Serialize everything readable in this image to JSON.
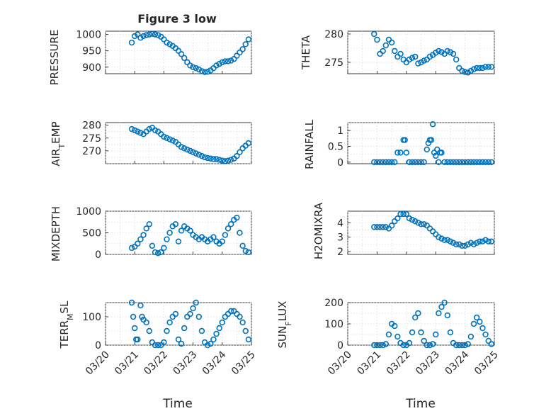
{
  "title": "Figure 3 low",
  "xlabel": "Time",
  "x_ticks": [
    "03/20",
    "03/21",
    "03/22",
    "03/23",
    "03/24",
    "03/25"
  ],
  "chart_data": [
    {
      "type": "scatter",
      "ylabel": "PRESSURE",
      "ylim": [
        880,
        1010
      ],
      "yticks": [
        900,
        950,
        1000
      ],
      "xlim": [
        "03/20",
        "03/25"
      ],
      "x_days": [
        0.9,
        1.0,
        1.1,
        1.2,
        1.3,
        1.4,
        1.5,
        1.6,
        1.7,
        1.8,
        1.9,
        2.0,
        2.1,
        2.2,
        2.3,
        2.4,
        2.5,
        2.6,
        2.7,
        2.8,
        2.9,
        3.0,
        3.1,
        3.2,
        3.3,
        3.4,
        3.5,
        3.6,
        3.7,
        3.8,
        3.9,
        4.0,
        4.1,
        4.2,
        4.3,
        4.4,
        4.5,
        4.6,
        4.7,
        4.8,
        4.9
      ],
      "y": [
        975,
        995,
        1000,
        990,
        995,
        998,
        1000,
        1002,
        1000,
        998,
        993,
        985,
        975,
        970,
        965,
        958,
        950,
        940,
        928,
        915,
        905,
        900,
        897,
        893,
        888,
        885,
        886,
        890,
        897,
        905,
        910,
        915,
        918,
        918,
        920,
        925,
        935,
        945,
        955,
        970,
        985
      ]
    },
    {
      "type": "scatter",
      "ylabel": "THETA",
      "ylim": [
        273,
        280.5
      ],
      "yticks": [
        275,
        280
      ],
      "xlim": [
        "03/20",
        "03/25"
      ],
      "x_days": [
        0.9,
        1.0,
        1.1,
        1.2,
        1.3,
        1.4,
        1.5,
        1.6,
        1.7,
        1.8,
        1.9,
        2.0,
        2.1,
        2.2,
        2.3,
        2.4,
        2.5,
        2.6,
        2.7,
        2.8,
        2.9,
        3.0,
        3.1,
        3.2,
        3.3,
        3.4,
        3.5,
        3.6,
        3.7,
        3.8,
        3.9,
        4.0,
        4.1,
        4.2,
        4.3,
        4.4,
        4.5,
        4.6,
        4.7,
        4.8,
        4.9
      ],
      "y": [
        280,
        279,
        276.5,
        277,
        278,
        279,
        278.5,
        277,
        276,
        276.5,
        275.5,
        275,
        275.5,
        275.8,
        276,
        274.8,
        275,
        275.3,
        275.5,
        276,
        276.3,
        276.7,
        277,
        276.8,
        276.5,
        277,
        276.8,
        276.5,
        275.5,
        274,
        273.5,
        273.3,
        273.2,
        273.5,
        273.8,
        274,
        274,
        274,
        274.2,
        274.2,
        274.2
      ]
    },
    {
      "type": "scatter",
      "ylabel": "AIR_TEMP",
      "ylim": [
        265,
        281
      ],
      "yticks": [
        270,
        275,
        280
      ],
      "xlim": [
        "03/20",
        "03/25"
      ],
      "x_days": [
        0.9,
        1.0,
        1.1,
        1.2,
        1.3,
        1.4,
        1.5,
        1.6,
        1.7,
        1.8,
        1.9,
        2.0,
        2.1,
        2.2,
        2.3,
        2.4,
        2.5,
        2.6,
        2.7,
        2.8,
        2.9,
        3.0,
        3.1,
        3.2,
        3.3,
        3.4,
        3.5,
        3.6,
        3.7,
        3.8,
        3.9,
        4.0,
        4.1,
        4.2,
        4.3,
        4.4,
        4.5,
        4.6,
        4.7,
        4.8,
        4.9
      ],
      "y": [
        278.5,
        278,
        277.5,
        277,
        276.5,
        277.5,
        278.5,
        279,
        278,
        277.5,
        276.5,
        275.5,
        275,
        274.5,
        274,
        273.5,
        272.5,
        271.5,
        271,
        270.5,
        270,
        269.5,
        269,
        268.5,
        268,
        267.5,
        267.2,
        267,
        266.8,
        266.8,
        266.5,
        266.2,
        266,
        266.2,
        266.5,
        267,
        268,
        269.5,
        271,
        272,
        273
      ]
    },
    {
      "type": "scatter",
      "ylabel": "RAINFALL",
      "ylim": [
        -0.05,
        1.25
      ],
      "yticks": [
        0,
        0.5,
        1
      ],
      "xlim": [
        "03/20",
        "03/25"
      ],
      "x_days": [
        0.9,
        1.0,
        1.1,
        1.2,
        1.3,
        1.4,
        1.5,
        1.6,
        1.7,
        1.8,
        1.9,
        1.95,
        2.0,
        2.1,
        2.2,
        2.3,
        2.4,
        2.5,
        2.6,
        2.7,
        2.75,
        2.8,
        2.85,
        2.9,
        2.95,
        3.0,
        3.05,
        3.1,
        3.15,
        3.2,
        3.3,
        3.4,
        3.5,
        3.6,
        3.7,
        3.8,
        3.9,
        4.0,
        4.1,
        4.2,
        4.3,
        4.4,
        4.5,
        4.6,
        4.7,
        4.8,
        4.9
      ],
      "y": [
        0,
        0,
        0,
        0,
        0,
        0,
        0,
        0,
        0.3,
        0.3,
        0.7,
        0.7,
        0.3,
        0,
        0,
        0,
        0,
        0,
        0,
        0.4,
        0.6,
        0.7,
        0.7,
        1.2,
        0.3,
        0.2,
        0.4,
        0,
        0.3,
        0.3,
        0,
        0,
        0,
        0,
        0,
        0,
        0,
        0,
        0,
        0,
        0,
        0,
        0,
        0,
        0,
        0,
        0
      ]
    },
    {
      "type": "scatter",
      "ylabel": "MIXDEPTH",
      "ylim": [
        0,
        1000
      ],
      "yticks": [
        0,
        500,
        1000
      ],
      "xlim": [
        "03/20",
        "03/25"
      ],
      "x_days": [
        0.9,
        1.0,
        1.1,
        1.2,
        1.3,
        1.4,
        1.5,
        1.6,
        1.7,
        1.8,
        1.9,
        2.0,
        2.1,
        2.2,
        2.3,
        2.4,
        2.5,
        2.6,
        2.7,
        2.8,
        2.9,
        3.0,
        3.1,
        3.2,
        3.3,
        3.4,
        3.5,
        3.6,
        3.7,
        3.8,
        3.9,
        4.0,
        4.1,
        4.2,
        4.3,
        4.4,
        4.5,
        4.6,
        4.7,
        4.8,
        4.9
      ],
      "y": [
        150,
        180,
        250,
        350,
        450,
        600,
        700,
        200,
        50,
        30,
        50,
        150,
        350,
        500,
        650,
        700,
        300,
        550,
        650,
        600,
        550,
        450,
        400,
        350,
        400,
        350,
        300,
        350,
        400,
        300,
        250,
        300,
        450,
        600,
        700,
        800,
        850,
        500,
        200,
        80,
        50
      ]
    },
    {
      "type": "scatter",
      "ylabel": "H2OMIXRA",
      "ylim": [
        1.8,
        4.8
      ],
      "yticks": [
        2,
        3,
        4
      ],
      "xlim": [
        "03/20",
        "03/25"
      ],
      "x_days": [
        0.9,
        1.0,
        1.1,
        1.2,
        1.3,
        1.4,
        1.5,
        1.6,
        1.7,
        1.8,
        1.9,
        2.0,
        2.1,
        2.2,
        2.3,
        2.4,
        2.5,
        2.6,
        2.7,
        2.8,
        2.9,
        3.0,
        3.1,
        3.2,
        3.3,
        3.4,
        3.5,
        3.6,
        3.7,
        3.8,
        3.9,
        4.0,
        4.1,
        4.2,
        4.3,
        4.4,
        4.5,
        4.6,
        4.7,
        4.8,
        4.9
      ],
      "y": [
        3.7,
        3.7,
        3.7,
        3.7,
        3.7,
        3.6,
        3.8,
        4.1,
        4.3,
        4.6,
        4.6,
        4.6,
        4.3,
        4.2,
        4.1,
        4.0,
        3.9,
        3.9,
        3.8,
        3.6,
        3.4,
        3.2,
        3.0,
        2.9,
        2.8,
        2.8,
        2.7,
        2.6,
        2.5,
        2.5,
        2.4,
        2.4,
        2.5,
        2.6,
        2.5,
        2.6,
        2.7,
        2.7,
        2.8,
        2.7,
        2.7
      ]
    },
    {
      "type": "scatter",
      "ylabel": "TERR_MSL",
      "ylim": [
        0,
        150
      ],
      "yticks": [
        0,
        100
      ],
      "xlim": [
        "03/20",
        "03/25"
      ],
      "x_days": [
        0.9,
        0.95,
        1.0,
        1.05,
        1.1,
        1.2,
        1.25,
        1.3,
        1.4,
        1.5,
        1.6,
        1.7,
        1.8,
        1.9,
        2.0,
        2.1,
        2.2,
        2.3,
        2.4,
        2.5,
        2.6,
        2.7,
        2.8,
        2.9,
        3.0,
        3.1,
        3.2,
        3.3,
        3.4,
        3.5,
        3.6,
        3.7,
        3.8,
        3.9,
        4.0,
        4.1,
        4.2,
        4.3,
        4.4,
        4.5,
        4.6,
        4.7,
        4.8,
        4.9
      ],
      "y": [
        150,
        100,
        60,
        20,
        20,
        140,
        100,
        90,
        80,
        50,
        10,
        0,
        0,
        0,
        10,
        50,
        80,
        100,
        110,
        20,
        5,
        60,
        100,
        110,
        130,
        150,
        100,
        50,
        10,
        0,
        5,
        20,
        40,
        60,
        80,
        100,
        110,
        120,
        120,
        110,
        100,
        80,
        50,
        20
      ]
    },
    {
      "type": "scatter",
      "ylabel": "SUN_FLUX",
      "ylim": [
        0,
        200
      ],
      "yticks": [
        0,
        100,
        200
      ],
      "xlim": [
        "03/20",
        "03/25"
      ],
      "x_days": [
        0.9,
        1.0,
        1.1,
        1.2,
        1.3,
        1.4,
        1.5,
        1.6,
        1.7,
        1.8,
        1.9,
        2.0,
        2.1,
        2.2,
        2.3,
        2.4,
        2.5,
        2.6,
        2.7,
        2.8,
        2.9,
        3.0,
        3.1,
        3.2,
        3.3,
        3.4,
        3.5,
        3.6,
        3.7,
        3.8,
        3.9,
        4.0,
        4.1,
        4.2,
        4.3,
        4.4,
        4.5,
        4.6,
        4.7,
        4.8,
        4.9
      ],
      "y": [
        0,
        0,
        0,
        0,
        5,
        50,
        100,
        90,
        40,
        10,
        0,
        0,
        10,
        60,
        130,
        150,
        60,
        20,
        0,
        0,
        5,
        50,
        150,
        180,
        200,
        140,
        60,
        10,
        0,
        0,
        0,
        0,
        5,
        40,
        100,
        130,
        110,
        80,
        50,
        20,
        5
      ]
    }
  ]
}
